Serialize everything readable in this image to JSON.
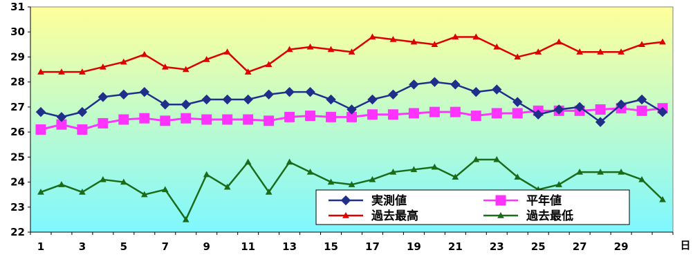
{
  "chart_data": {
    "type": "line",
    "title": "",
    "xlabel": "日",
    "ylabel": "",
    "x": [
      1,
      2,
      3,
      4,
      5,
      6,
      7,
      8,
      9,
      10,
      11,
      12,
      13,
      14,
      15,
      16,
      17,
      18,
      19,
      20,
      21,
      22,
      23,
      24,
      25,
      26,
      27,
      28,
      29,
      30,
      31
    ],
    "xticks": [
      "1",
      "3",
      "5",
      "7",
      "9",
      "11",
      "13",
      "15",
      "17",
      "19",
      "21",
      "23",
      "25",
      "27",
      "29"
    ],
    "yticks": [
      "22",
      "23",
      "24",
      "25",
      "26",
      "27",
      "28",
      "29",
      "30",
      "31"
    ],
    "ylim": [
      22,
      31
    ],
    "xlim": [
      0.5,
      31.5
    ],
    "grid": false,
    "legend_position": "bottom-right",
    "series": [
      {
        "name": "実測値",
        "color": "#1f2f8a",
        "marker": "diamond",
        "values": [
          26.8,
          26.6,
          26.8,
          27.4,
          27.5,
          27.6,
          27.1,
          27.1,
          27.3,
          27.3,
          27.3,
          27.5,
          27.6,
          27.6,
          27.3,
          26.9,
          27.3,
          27.5,
          27.9,
          28.0,
          27.9,
          27.6,
          27.7,
          27.2,
          26.7,
          26.9,
          27.0,
          26.4,
          27.1,
          27.3,
          26.8
        ]
      },
      {
        "name": "平年値",
        "color": "#ff33ff",
        "marker": "square",
        "values": [
          26.1,
          26.3,
          26.1,
          26.35,
          26.5,
          26.55,
          26.45,
          26.55,
          26.5,
          26.5,
          26.5,
          26.45,
          26.6,
          26.65,
          26.6,
          26.6,
          26.7,
          26.7,
          26.75,
          26.8,
          26.8,
          26.65,
          26.75,
          26.75,
          26.85,
          26.85,
          26.85,
          26.9,
          26.95,
          26.85,
          26.95
        ]
      },
      {
        "name": "過去最高",
        "color": "#dd0000",
        "marker": "triangle",
        "values": [
          28.4,
          28.4,
          28.4,
          28.6,
          28.8,
          29.1,
          28.6,
          28.5,
          28.9,
          29.2,
          28.4,
          28.7,
          29.3,
          29.4,
          29.3,
          29.2,
          29.8,
          29.7,
          29.6,
          29.5,
          29.8,
          29.8,
          29.4,
          29.0,
          29.2,
          29.6,
          29.2,
          29.2,
          29.2,
          29.5,
          29.6
        ]
      },
      {
        "name": "過去最低",
        "color": "#1a6b1a",
        "marker": "triangle",
        "values": [
          23.6,
          23.9,
          23.6,
          24.1,
          24.0,
          23.5,
          23.7,
          22.5,
          24.3,
          23.8,
          24.8,
          23.6,
          24.8,
          24.4,
          24.0,
          23.9,
          24.1,
          24.4,
          24.5,
          24.6,
          24.2,
          24.9,
          24.9,
          24.2,
          23.7,
          23.9,
          24.4,
          24.4,
          24.4,
          24.1,
          23.3
        ]
      }
    ],
    "background_gradient": [
      "#ffff9a",
      "#7ff7ff"
    ]
  }
}
